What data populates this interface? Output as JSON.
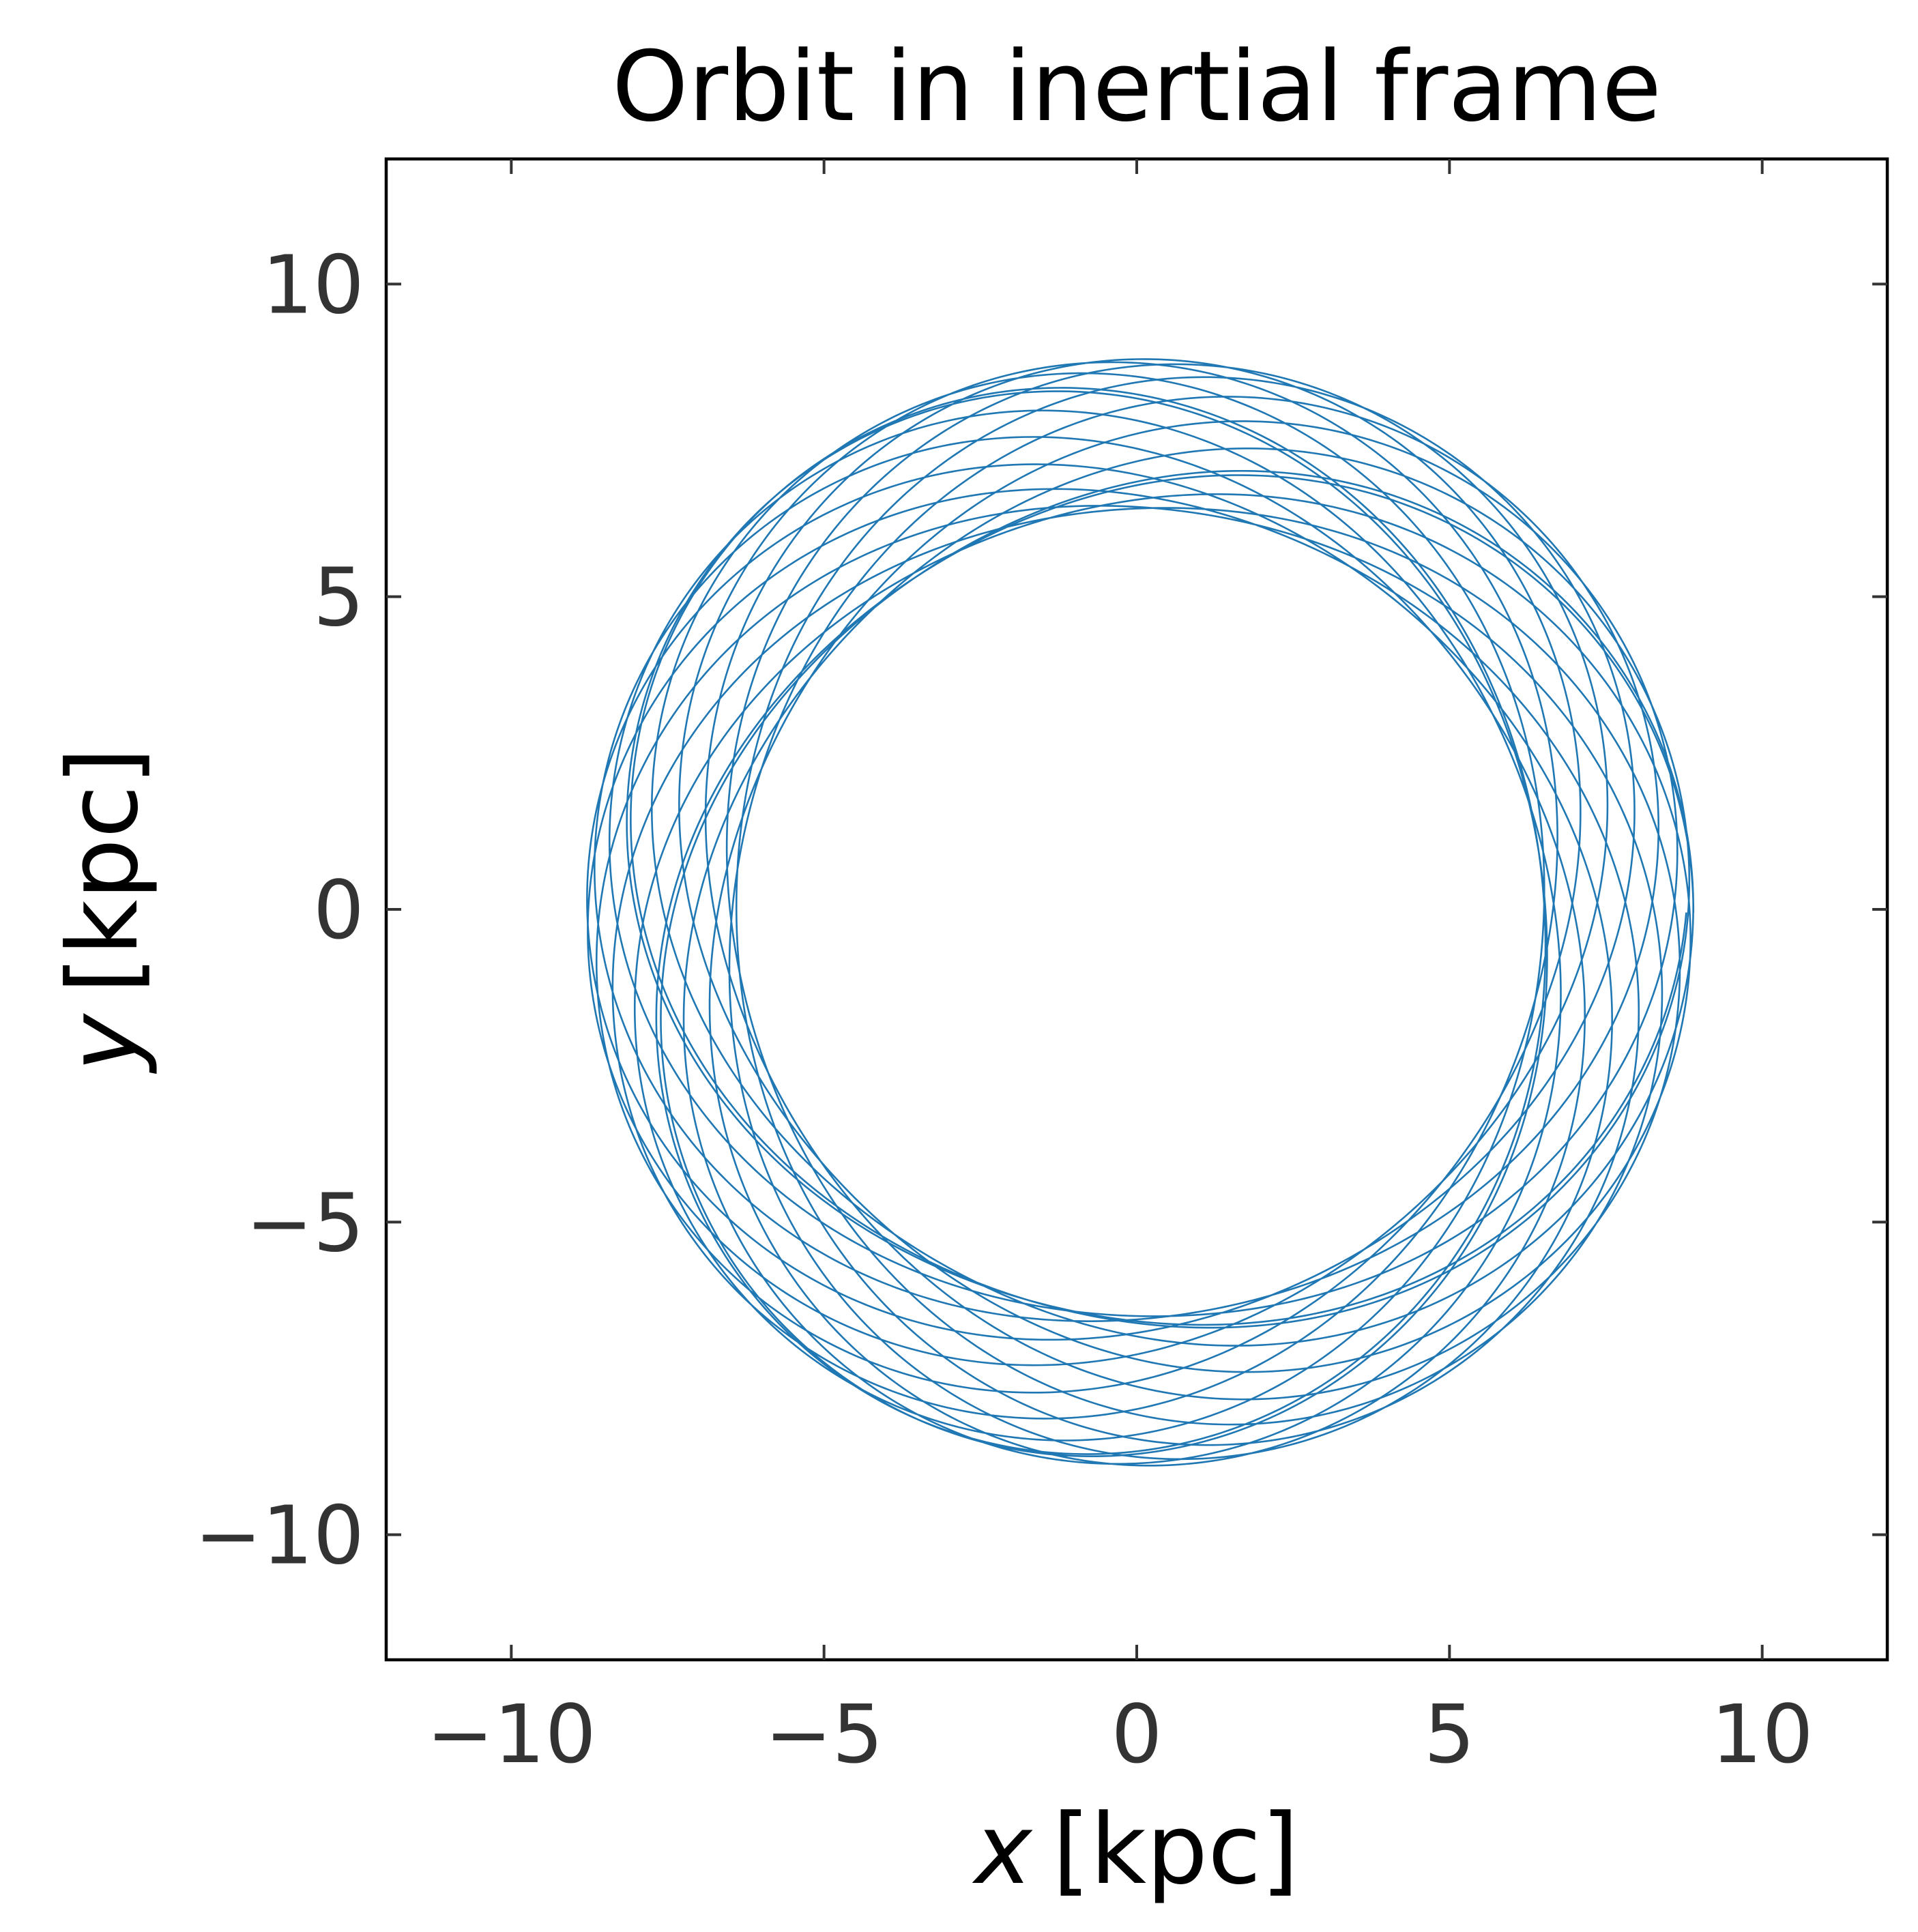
{
  "chart_data": {
    "type": "line",
    "title": "Orbit in inertial frame",
    "xlabel_var": "x",
    "xlabel_unit": "[kpc]",
    "ylabel_var": "y",
    "ylabel_unit": "[kpc]",
    "xlim": [
      -12,
      12
    ],
    "ylim": [
      -12,
      12
    ],
    "xticks": [
      -10,
      -5,
      0,
      5,
      10
    ],
    "yticks": [
      -10,
      -5,
      0,
      5,
      10
    ],
    "xtick_labels": [
      "−10",
      "−5",
      "0",
      "5",
      "10"
    ],
    "ytick_labels": [
      "−10",
      "−5",
      "0",
      "5",
      "10"
    ],
    "grid": false,
    "series": [
      {
        "color": "#1f77b4",
        "orbit": {
          "r_min": 6.45,
          "r_max": 8.85,
          "x_center_offset": 0.05,
          "y_center_offset": -0.05,
          "azimuthal_periods": 19,
          "radial_to_azimuthal_ratio": 1.47
        }
      }
    ]
  }
}
